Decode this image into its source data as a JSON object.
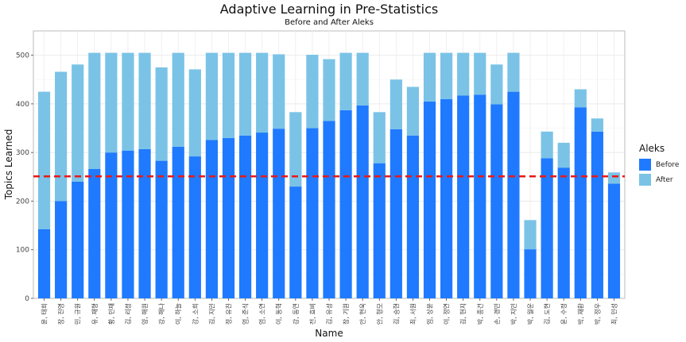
{
  "chart_data": {
    "type": "bar",
    "stacked": true,
    "title": "Adaptive Learning in Pre-Statistics",
    "subtitle": "Before and After Aleks",
    "xlabel": "Name",
    "ylabel": "Topics Learned",
    "ylim": [
      0,
      550
    ],
    "yticks": [
      0,
      100,
      200,
      300,
      400,
      500
    ],
    "grid": true,
    "legend": {
      "title": "Aleks",
      "position": "right"
    },
    "reference_line": {
      "value": 251,
      "color": "#e8191a",
      "style": "dashed"
    },
    "categories": [
      "윤, 태희",
      "장, 진영",
      "민, 규원",
      "유, 재형",
      "황, 민재",
      "김, 리정",
      "양, 해원",
      "강, 해나",
      "이, 하늘",
      "강, 소희",
      "김, 지민",
      "정, 유진",
      "엄, 준식",
      "엄, 소연",
      "이, 동혁",
      "강, 동연",
      "전, 효비",
      "김, 유성",
      "장, 기원",
      "안, 현욱",
      "안, 형모",
      "김, 승현",
      "최, 서원",
      "임, 상윤",
      "이, 정연",
      "김, 현지",
      "박, 종건",
      "손, 경민",
      "박, 지민",
      "박, 월운",
      "김, 도현",
      "윤, 수정",
      "박, 재환",
      "박, 정우",
      "최, 민성"
    ],
    "series": [
      {
        "name": "Before",
        "color": "#1f7aff",
        "values": [
          142,
          200,
          240,
          266,
          300,
          304,
          307,
          283,
          312,
          292,
          326,
          330,
          335,
          341,
          349,
          230,
          350,
          365,
          387,
          397,
          278,
          348,
          335,
          405,
          410,
          417,
          419,
          399,
          425,
          101,
          288,
          269,
          393,
          343,
          236
        ]
      },
      {
        "name": "After",
        "color": "#7ac3e6",
        "values": [
          283,
          266,
          241,
          239,
          205,
          201,
          198,
          192,
          193,
          179,
          179,
          175,
          170,
          164,
          153,
          153,
          151,
          127,
          118,
          108,
          105,
          102,
          100,
          100,
          95,
          88,
          86,
          82,
          80,
          60,
          55,
          51,
          37,
          27,
          23
        ]
      }
    ]
  }
}
